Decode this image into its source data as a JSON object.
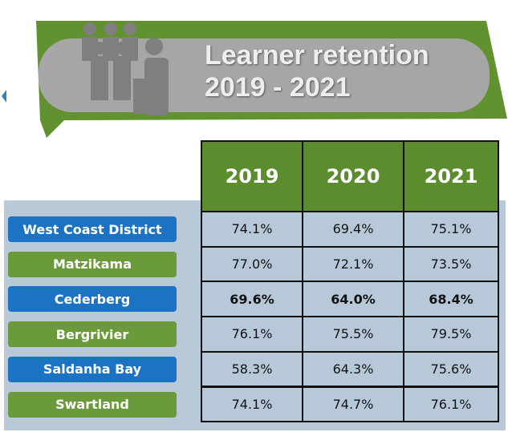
{
  "header": {
    "title": [
      "Learner retention",
      "2019 - 2021"
    ]
  },
  "table": {
    "columns": [
      "2019",
      "2020",
      "2021"
    ],
    "rows": [
      {
        "name": "West Coast District",
        "values": [
          "74.1%",
          "69.4%",
          "75.1%"
        ]
      },
      {
        "name": "Matzikama",
        "values": [
          "77.0%",
          "72.1%",
          "73.5%"
        ]
      },
      {
        "name": "Cederberg",
        "values": [
          "69.6%",
          "64.0%",
          "68.4%"
        ]
      },
      {
        "name": "Bergrivier",
        "values": [
          "76.1%",
          "75.5%",
          "79.5%"
        ]
      },
      {
        "name": "Saldanha Bay",
        "values": [
          "58.3%",
          "64.3%",
          "75.6%"
        ]
      },
      {
        "name": "Swartland",
        "values": [
          "74.1%",
          "74.7%",
          "76.1%"
        ]
      }
    ]
  }
}
